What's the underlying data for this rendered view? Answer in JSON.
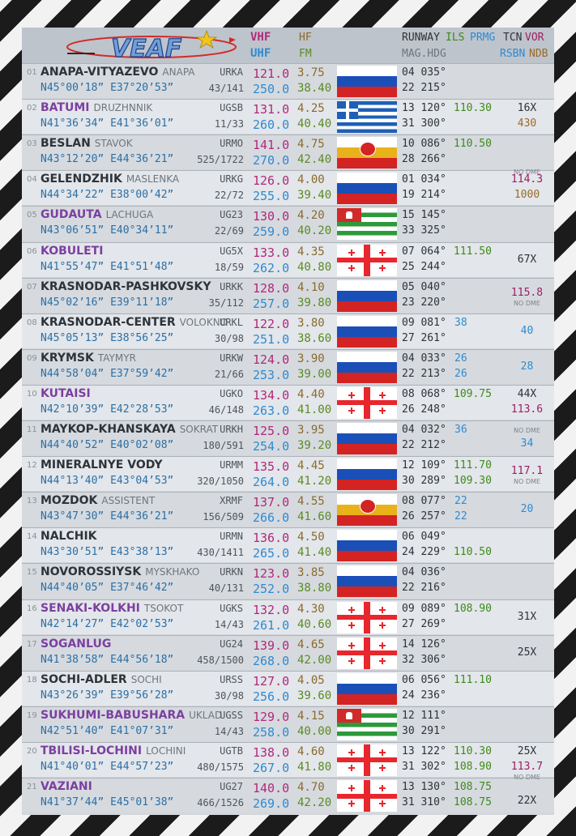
{
  "header": {
    "logo_text": "VEAF",
    "vhf": "VHF",
    "uhf": "UHF",
    "hf": "HF",
    "fm": "FM",
    "runway": "RUNWAY",
    "ils": "ILS",
    "prmg": "PRMG",
    "mag_hdg": "MAG.HDG",
    "tcn": "TCN",
    "vor": "VOR",
    "rsbn": "RSBN",
    "ndb": "NDB"
  },
  "colors": {
    "vhf": "#b1287c",
    "uhf": "#2e8ad2",
    "hf": "#8a6a2c",
    "fm": "#5a8a22",
    "ils": "#3d8a1a",
    "georgia_name": "#7c3fa0"
  },
  "airfields": [
    {
      "idx": "01",
      "name": "ANAPA-VITYAZEVO",
      "alt_name": "ANAPA",
      "icao": "URKA",
      "coord": "N45°00’18” E37°20’53”",
      "elev": "43/141",
      "vhf": "121.0",
      "uhf": "250.0",
      "hf": "3.75",
      "fm": "38.40",
      "flag": "russia",
      "rw1": "04 035°",
      "rw2": "22 215°",
      "ils1": "",
      "ils2": "",
      "prmg1": "",
      "prmg2": "",
      "tcn": "",
      "vor": "",
      "ndb": "",
      "rsbn": "",
      "nodme": "",
      "nodme_top": false,
      "georgia": false
    },
    {
      "idx": "02",
      "name": "BATUMI",
      "alt_name": "DRUZHNNIK",
      "icao": "UGSB",
      "coord": "N41°36’34” E41°36’01”",
      "elev": "11/33",
      "vhf": "131.0",
      "uhf": "260.0",
      "hf": "4.25",
      "fm": "40.40",
      "flag": "greece",
      "rw1": "13 120°",
      "rw2": "31 300°",
      "ils1": "110.30",
      "ils2": "",
      "prmg1": "",
      "prmg2": "",
      "tcn": "16X",
      "vor": "",
      "ndb": "430",
      "rsbn": "",
      "nodme": "",
      "nodme_top": false,
      "georgia": true
    },
    {
      "idx": "03",
      "name": "BESLAN",
      "alt_name": "STAVOK",
      "icao": "URMO",
      "coord": "N43°12’20” E44°36’21”",
      "elev": "525/1722",
      "vhf": "141.0",
      "uhf": "270.0",
      "hf": "4.75",
      "fm": "42.40",
      "flag": "north-ossetia",
      "rw1": "10 086°",
      "rw2": "28 266°",
      "ils1": "110.50",
      "ils2": "",
      "prmg1": "",
      "prmg2": "",
      "tcn": "",
      "vor": "",
      "ndb": "",
      "rsbn": "",
      "nodme": "",
      "nodme_top": false,
      "georgia": false
    },
    {
      "idx": "04",
      "name": "GELENDZHIK",
      "alt_name": "MASLENKA",
      "icao": "URKG",
      "coord": "N44°34’22” E38°00’42”",
      "elev": "22/72",
      "vhf": "126.0",
      "uhf": "255.0",
      "hf": "4.00",
      "fm": "39.40",
      "flag": "russia",
      "rw1": "01 034°",
      "rw2": "19 214°",
      "ils1": "",
      "ils2": "",
      "prmg1": "",
      "prmg2": "",
      "tcn": "",
      "vor": "114.3",
      "ndb": "1000",
      "rsbn": "",
      "nodme": "NO DME",
      "nodme_top": true,
      "georgia": false
    },
    {
      "idx": "05",
      "name": "GUDAUTA",
      "alt_name": "LACHUGA",
      "icao": "UG23",
      "coord": "N43°06’51” E40°34’11”",
      "elev": "22/69",
      "vhf": "130.0",
      "uhf": "259.0",
      "hf": "4.20",
      "fm": "40.20",
      "flag": "abkhazia",
      "rw1": "15 145°",
      "rw2": "33 325°",
      "ils1": "",
      "ils2": "",
      "prmg1": "",
      "prmg2": "",
      "tcn": "",
      "vor": "",
      "ndb": "",
      "rsbn": "",
      "nodme": "",
      "nodme_top": false,
      "georgia": true
    },
    {
      "idx": "06",
      "name": "KOBULETI",
      "alt_name": "",
      "icao": "UG5X",
      "coord": "N41°55’47” E41°51’48”",
      "elev": "18/59",
      "vhf": "133.0",
      "uhf": "262.0",
      "hf": "4.35",
      "fm": "40.80",
      "flag": "georgia",
      "rw1": "07 064°",
      "rw2": "25 244°",
      "ils1": "111.50",
      "ils2": "",
      "prmg1": "",
      "prmg2": "",
      "tcn": "67X",
      "vor": "",
      "ndb": "",
      "rsbn": "",
      "nodme": "",
      "nodme_top": false,
      "georgia": true
    },
    {
      "idx": "07",
      "name": "KRASNODAR-PASHKOVSKY",
      "alt_name": "",
      "icao": "URKK",
      "coord": "N45°02’16” E39°11’18”",
      "elev": "35/112",
      "vhf": "128.0",
      "uhf": "257.0",
      "hf": "4.10",
      "fm": "39.80",
      "flag": "russia",
      "rw1": "05 040°",
      "rw2": "23 220°",
      "ils1": "",
      "ils2": "",
      "prmg1": "",
      "prmg2": "",
      "tcn": "",
      "vor": "115.8",
      "ndb": "",
      "rsbn": "",
      "nodme": "NO DME",
      "nodme_top": false,
      "georgia": false
    },
    {
      "idx": "08",
      "name": "KRASNODAR-CENTER",
      "alt_name": "VOLOKNO",
      "icao": "URKL",
      "coord": "N45°05’13” E38°56’25”",
      "elev": "30/98",
      "vhf": "122.0",
      "uhf": "251.0",
      "hf": "3.80",
      "fm": "38.60",
      "flag": "russia",
      "rw1": "09 081°",
      "rw2": "27 261°",
      "ils1": "",
      "ils2": "",
      "prmg1": "38",
      "prmg2": "",
      "tcn": "",
      "vor": "",
      "ndb": "",
      "rsbn": "40",
      "nodme": "",
      "nodme_top": false,
      "georgia": false
    },
    {
      "idx": "09",
      "name": "KRYMSK",
      "alt_name": "TAYMYR",
      "icao": "URKW",
      "coord": "N44°58’04” E37°59’42”",
      "elev": "21/66",
      "vhf": "124.0",
      "uhf": "253.0",
      "hf": "3.90",
      "fm": "39.00",
      "flag": "russia",
      "rw1": "04 033°",
      "rw2": "22 213°",
      "ils1": "",
      "ils2": "",
      "prmg1": "26",
      "prmg2": "26",
      "tcn": "",
      "vor": "",
      "ndb": "",
      "rsbn": "28",
      "nodme": "",
      "nodme_top": false,
      "georgia": false
    },
    {
      "idx": "10",
      "name": "KUTAISI",
      "alt_name": "",
      "icao": "UGKO",
      "coord": "N42°10’39” E42°28’53”",
      "elev": "46/148",
      "vhf": "134.0",
      "uhf": "263.0",
      "hf": "4.40",
      "fm": "41.00",
      "flag": "georgia",
      "rw1": "08 068°",
      "rw2": "26 248°",
      "ils1": "109.75",
      "ils2": "",
      "prmg1": "",
      "prmg2": "",
      "tcn": "44X",
      "vor": "113.6",
      "ndb": "",
      "rsbn": "",
      "nodme": "",
      "nodme_top": false,
      "georgia": true
    },
    {
      "idx": "11",
      "name": "MAYKOP-KHANSKAYA",
      "alt_name": "SOKRAT",
      "icao": "URKH",
      "coord": "N44°40’52” E40°02’08”",
      "elev": "180/591",
      "vhf": "125.0",
      "uhf": "254.0",
      "hf": "3.95",
      "fm": "39.20",
      "flag": "russia",
      "rw1": "04 032°",
      "rw2": "22 212°",
      "ils1": "",
      "ils2": "",
      "prmg1": "36",
      "prmg2": "",
      "tcn": "",
      "vor": "",
      "ndb": "",
      "rsbn": "34",
      "nodme": "NO DME",
      "nodme_top": true,
      "georgia": false
    },
    {
      "idx": "12",
      "name": "MINERALNYE VODY",
      "alt_name": "",
      "icao": "URMM",
      "coord": "N44°13’40” E43°04’53”",
      "elev": "320/1050",
      "vhf": "135.0",
      "uhf": "264.0",
      "hf": "4.45",
      "fm": "41.20",
      "flag": "russia",
      "rw1": "12 109°",
      "rw2": "30 289°",
      "ils1": "111.70",
      "ils2": "109.30",
      "prmg1": "",
      "prmg2": "",
      "tcn": "",
      "vor": "117.1",
      "ndb": "",
      "rsbn": "",
      "nodme": "NO DME",
      "nodme_top": false,
      "georgia": false
    },
    {
      "idx": "13",
      "name": "MOZDOK",
      "alt_name": "ASSISTENT",
      "icao": "XRMF",
      "coord": "N43°47’30” E44°36’21”",
      "elev": "156/509",
      "vhf": "137.0",
      "uhf": "266.0",
      "hf": "4.55",
      "fm": "41.60",
      "flag": "north-ossetia",
      "rw1": "08 077°",
      "rw2": "26 257°",
      "ils1": "",
      "ils2": "",
      "prmg1": "22",
      "prmg2": "22",
      "tcn": "",
      "vor": "",
      "ndb": "",
      "rsbn": "20",
      "nodme": "",
      "nodme_top": false,
      "georgia": false
    },
    {
      "idx": "14",
      "name": "NALCHIK",
      "alt_name": "",
      "icao": "URMN",
      "coord": "N43°30’51” E43°38’13”",
      "elev": "430/1411",
      "vhf": "136.0",
      "uhf": "265.0",
      "hf": "4.50",
      "fm": "41.40",
      "flag": "russia",
      "rw1": "06 049°",
      "rw2": "24 229°",
      "ils1": "",
      "ils2": "110.50",
      "prmg1": "",
      "prmg2": "",
      "tcn": "",
      "vor": "",
      "ndb": "",
      "rsbn": "",
      "nodme": "",
      "nodme_top": false,
      "georgia": false
    },
    {
      "idx": "15",
      "name": "NOVOROSSIYSK",
      "alt_name": "MYSKHAKO",
      "icao": "URKN",
      "coord": "N44°40’05” E37°46’42”",
      "elev": "40/131",
      "vhf": "123.0",
      "uhf": "252.0",
      "hf": "3.85",
      "fm": "38.80",
      "flag": "russia",
      "rw1": "04 036°",
      "rw2": "22 216°",
      "ils1": "",
      "ils2": "",
      "prmg1": "",
      "prmg2": "",
      "tcn": "",
      "vor": "",
      "ndb": "",
      "rsbn": "",
      "nodme": "",
      "nodme_top": false,
      "georgia": false
    },
    {
      "idx": "16",
      "name": "SENAKI-KOLKHI",
      "alt_name": "TSOKOT",
      "icao": "UGKS",
      "coord": "N42°14’27” E42°02’53”",
      "elev": "14/43",
      "vhf": "132.0",
      "uhf": "261.0",
      "hf": "4.30",
      "fm": "40.60",
      "flag": "georgia",
      "rw1": "09 089°",
      "rw2": "27 269°",
      "ils1": "108.90",
      "ils2": "",
      "prmg1": "",
      "prmg2": "",
      "tcn": "31X",
      "vor": "",
      "ndb": "",
      "rsbn": "",
      "nodme": "",
      "nodme_top": false,
      "georgia": true
    },
    {
      "idx": "17",
      "name": "SOGANLUG",
      "alt_name": "",
      "icao": "UG24",
      "coord": "N41°38’58” E44°56’18”",
      "elev": "458/1500",
      "vhf": "139.0",
      "uhf": "268.0",
      "hf": "4.65",
      "fm": "42.00",
      "flag": "georgia",
      "rw1": "14 126°",
      "rw2": "32 306°",
      "ils1": "",
      "ils2": "",
      "prmg1": "",
      "prmg2": "",
      "tcn": "25X",
      "vor": "",
      "ndb": "",
      "rsbn": "",
      "nodme": "",
      "nodme_top": false,
      "georgia": true
    },
    {
      "idx": "18",
      "name": "SOCHI-ADLER",
      "alt_name": "SOCHI",
      "icao": "URSS",
      "coord": "N43°26’39” E39°56’28”",
      "elev": "30/98",
      "vhf": "127.0",
      "uhf": "256.0",
      "hf": "4.05",
      "fm": "39.60",
      "flag": "russia",
      "rw1": "06 056°",
      "rw2": "24 236°",
      "ils1": "111.10",
      "ils2": "",
      "prmg1": "",
      "prmg2": "",
      "tcn": "",
      "vor": "",
      "ndb": "",
      "rsbn": "",
      "nodme": "",
      "nodme_top": false,
      "georgia": false
    },
    {
      "idx": "19",
      "name": "SUKHUMI-BABUSHARA",
      "alt_name": "UKLAD",
      "icao": "UGSS",
      "coord": "N42°51’40” E41°07’31”",
      "elev": "14/43",
      "vhf": "129.0",
      "uhf": "258.0",
      "hf": "4.15",
      "fm": "40.00",
      "flag": "abkhazia",
      "rw1": "12 111°",
      "rw2": "30 291°",
      "ils1": "",
      "ils2": "",
      "prmg1": "",
      "prmg2": "",
      "tcn": "",
      "vor": "",
      "ndb": "",
      "rsbn": "",
      "nodme": "",
      "nodme_top": false,
      "georgia": true
    },
    {
      "idx": "20",
      "name": "TBILISI-LOCHINI",
      "alt_name": "LOCHINI",
      "icao": "UGTB",
      "coord": "N41°40’01” E44°57’23”",
      "elev": "480/1575",
      "vhf": "138.0",
      "uhf": "267.0",
      "hf": "4.60",
      "fm": "41.80",
      "flag": "georgia",
      "rw1": "13 122°",
      "rw2": "31 302°",
      "ils1": "110.30",
      "ils2": "108.90",
      "prmg1": "",
      "prmg2": "",
      "tcn": "25X",
      "vor": "113.7",
      "ndb": "",
      "rsbn": "",
      "nodme": "",
      "nodme_top": false,
      "georgia": true
    },
    {
      "idx": "21",
      "name": "VAZIANI",
      "alt_name": "",
      "icao": "UG27",
      "coord": "N41°37’44” E45°01’38”",
      "elev": "466/1526",
      "vhf": "140.0",
      "uhf": "269.0",
      "hf": "4.70",
      "fm": "42.20",
      "flag": "georgia",
      "rw1": "13 130°",
      "rw2": "31 310°",
      "ils1": "108.75",
      "ils2": "108.75",
      "prmg1": "",
      "prmg2": "",
      "tcn": "22X",
      "vor": "",
      "ndb": "",
      "rsbn": "",
      "nodme": "NO DME",
      "nodme_top": true,
      "georgia": true
    }
  ]
}
